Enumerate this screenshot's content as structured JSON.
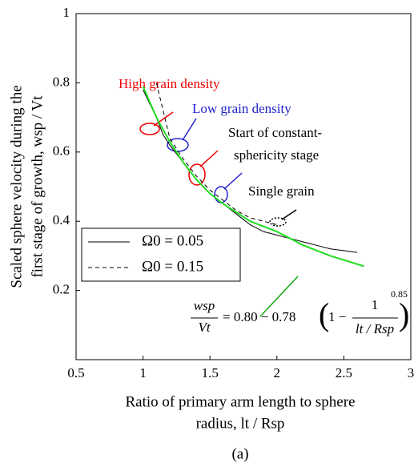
{
  "chart_data": {
    "type": "line",
    "xlabel": [
      "Ratio of primary arm length to sphere",
      "radius, lt / Rsp"
    ],
    "ylabel": [
      "Scaled sphere velocity during the",
      "first stage of growth, wsp / Vt"
    ],
    "caption": "(a)",
    "xlim": [
      0.5,
      3
    ],
    "xticks": [
      0.5,
      1,
      1.5,
      2,
      2.5,
      3
    ],
    "ylim": [
      0,
      1
    ],
    "yticks": [
      0.2,
      0.4,
      0.6,
      0.8,
      1
    ],
    "legend": "left",
    "series": [
      {
        "name": "Ω0 = 0.05",
        "color": "#000000",
        "style": "solid",
        "x": [
          1.0,
          1.05,
          1.1,
          1.15,
          1.2,
          1.3,
          1.4,
          1.5,
          1.6,
          1.7,
          1.8,
          1.9,
          2.0,
          2.1,
          2.2,
          2.3,
          2.4,
          2.5,
          2.6
        ],
        "values": [
          0.78,
          0.74,
          0.7,
          0.65,
          0.62,
          0.57,
          0.52,
          0.48,
          0.45,
          0.42,
          0.39,
          0.37,
          0.36,
          0.35,
          0.34,
          0.33,
          0.32,
          0.315,
          0.31
        ]
      },
      {
        "name": "Ω0 = 0.15",
        "color": "#000000",
        "style": "dash",
        "x": [
          1.1,
          1.15,
          1.2,
          1.3,
          1.4,
          1.5,
          1.6,
          1.7,
          1.8,
          1.9,
          2.0
        ],
        "values": [
          0.8,
          0.72,
          0.64,
          0.58,
          0.53,
          0.49,
          0.46,
          0.43,
          0.41,
          0.4,
          0.39
        ]
      },
      {
        "color": "#22dd22",
        "style": "solid",
        "x": [
          1.0,
          1.1,
          1.2,
          1.3,
          1.4,
          1.5,
          1.6,
          1.8,
          2.0,
          2.2,
          2.4,
          2.65
        ],
        "values": [
          0.79,
          0.7,
          0.63,
          0.57,
          0.52,
          0.48,
          0.45,
          0.4,
          0.37,
          0.33,
          0.3,
          0.27
        ]
      }
    ],
    "annotations": {
      "high": "High grain density",
      "low": "Low grain density",
      "start": [
        "Start of constant-",
        "sphericity stage"
      ],
      "single": "Single grain"
    },
    "equation": {
      "num": "wsp",
      "den": "Vt",
      "rhs": "= 0.80 − 0.78",
      "one_minus": "1 −",
      "frac_num": "1",
      "frac_den": "lt / Rsp",
      "exponent": "0.85"
    }
  }
}
